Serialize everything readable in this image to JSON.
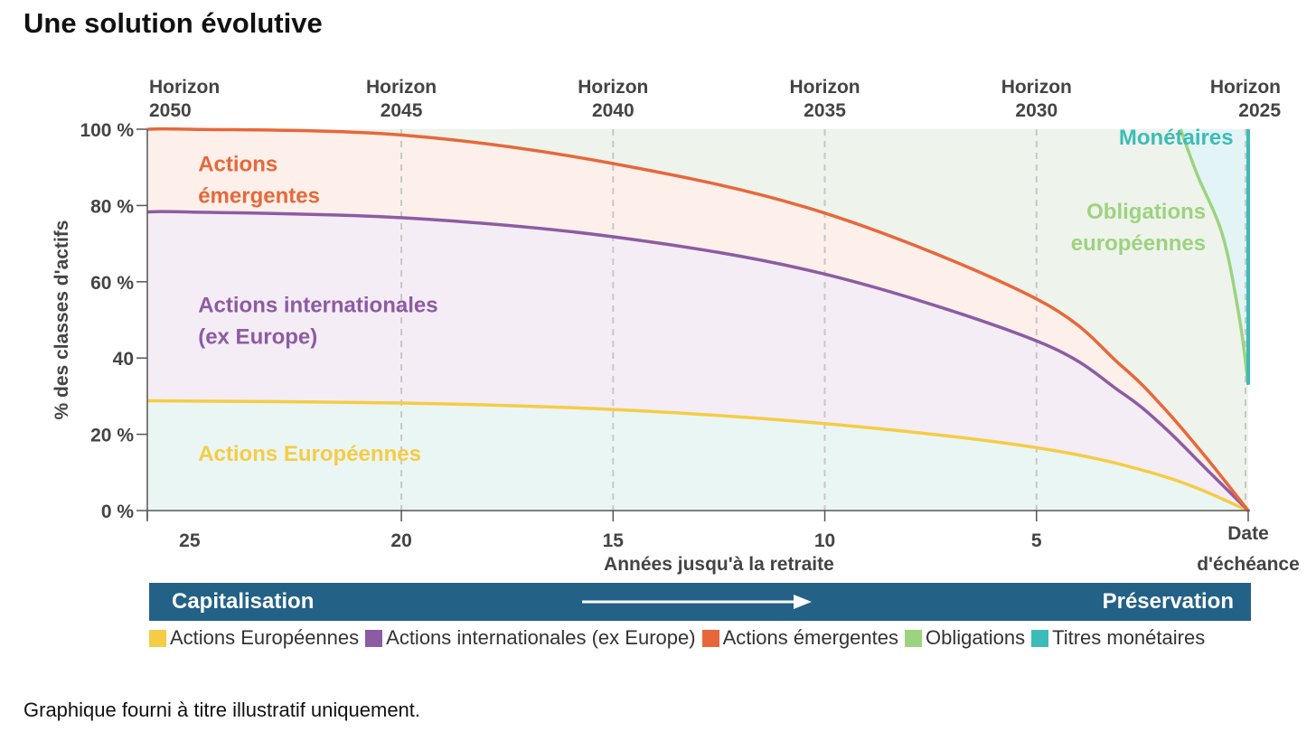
{
  "page": {
    "title": "Une solution évolutive",
    "footnote": "Graphique fourni à titre illustratif uniquement."
  },
  "colors": {
    "europeennes": "#F5CC45",
    "internationales": "#8D5BA3",
    "emergentes": "#E8673A",
    "obligations": "#9DD37E",
    "monetaires": "#3CBCB7",
    "banner": "#236187",
    "axis_text": "#444444"
  },
  "chart_data": {
    "type": "area",
    "title": "Une solution évolutive",
    "xlabel": "Années jusqu'à la retraite",
    "ylabel": "% des classes d'actifs",
    "xlim": [
      26,
      0
    ],
    "ylim": [
      0,
      100
    ],
    "x_ticks": [
      "25",
      "20",
      "15",
      "10",
      "5"
    ],
    "x_end_label": [
      "Date",
      "d'échéance"
    ],
    "y_ticks": [
      "0 %",
      "20 %",
      "40",
      "60 %",
      "80 %",
      "100 %"
    ],
    "top_axis": [
      {
        "x": 26,
        "line1": "Horizon",
        "line2": "2050"
      },
      {
        "x": 20,
        "line1": "Horizon",
        "line2": "2045"
      },
      {
        "x": 15,
        "line1": "Horizon",
        "line2": "2040"
      },
      {
        "x": 10,
        "line1": "Horizon",
        "line2": "2035"
      },
      {
        "x": 5,
        "line1": "Horizon",
        "line2": "2030"
      },
      {
        "x": 0,
        "line1": "Horizon",
        "line2": "2025"
      }
    ],
    "series": [
      {
        "name": "Actions Européennes",
        "key": "europeennes",
        "kind": "cumulative",
        "points": [
          [
            26,
            28.8
          ],
          [
            20,
            28.2
          ],
          [
            15,
            26.5
          ],
          [
            10,
            22.8
          ],
          [
            5,
            16.5
          ],
          [
            2,
            9
          ],
          [
            0,
            0
          ]
        ]
      },
      {
        "name": "Actions internationales (ex Europe)",
        "key": "internationales",
        "kind": "cumulative",
        "points": [
          [
            26,
            78.3
          ],
          [
            25,
            78.3
          ],
          [
            20,
            76.8
          ],
          [
            15,
            71.8
          ],
          [
            10,
            62
          ],
          [
            5,
            44.5
          ],
          [
            3,
            31
          ],
          [
            2,
            22
          ],
          [
            1,
            11
          ],
          [
            0,
            0
          ]
        ]
      },
      {
        "name": "Actions émergentes",
        "key": "emergentes",
        "kind": "cumulative",
        "points": [
          [
            26,
            100
          ],
          [
            25,
            100
          ],
          [
            20,
            98.5
          ],
          [
            15,
            91
          ],
          [
            10,
            78
          ],
          [
            5,
            55.5
          ],
          [
            3,
            38
          ],
          [
            2,
            27
          ],
          [
            1,
            14
          ],
          [
            0,
            0
          ]
        ]
      },
      {
        "name": "Obligations",
        "key": "obligations",
        "kind": "boundary",
        "points": [
          [
            1.6,
            100
          ],
          [
            1.2,
            88
          ],
          [
            0.6,
            72
          ],
          [
            0.2,
            50
          ],
          [
            0,
            33
          ]
        ]
      }
    ],
    "region_labels": [
      {
        "lines": [
          "Actions",
          "émergentes"
        ],
        "key": "emergentes",
        "x": 24.8,
        "y": 89
      },
      {
        "lines": [
          "Actions internationales",
          "(ex Europe)"
        ],
        "key": "internationales",
        "x": 24.8,
        "y": 52
      },
      {
        "lines": [
          "Actions Européennes"
        ],
        "key": "europeennes",
        "x": 24.8,
        "y": 13
      },
      {
        "lines": [
          "Obligations",
          "européennes"
        ],
        "key": "obligations",
        "x": 1,
        "y": 76.5,
        "anchor": "end"
      },
      {
        "lines": [
          "Monétaires"
        ],
        "key": "monetaires",
        "x": 0.35,
        "y": 96,
        "anchor": "end"
      }
    ],
    "banner": {
      "left": "Capitalisation",
      "right": "Préservation"
    },
    "legend": [
      {
        "label": "Actions Européennes",
        "key": "europeennes"
      },
      {
        "label": "Actions internationales (ex Europe)",
        "key": "internationales"
      },
      {
        "label": "Actions émergentes",
        "key": "emergentes"
      },
      {
        "label": "Obligations",
        "key": "obligations"
      },
      {
        "label": "Titres monétaires",
        "key": "monetaires"
      }
    ]
  }
}
